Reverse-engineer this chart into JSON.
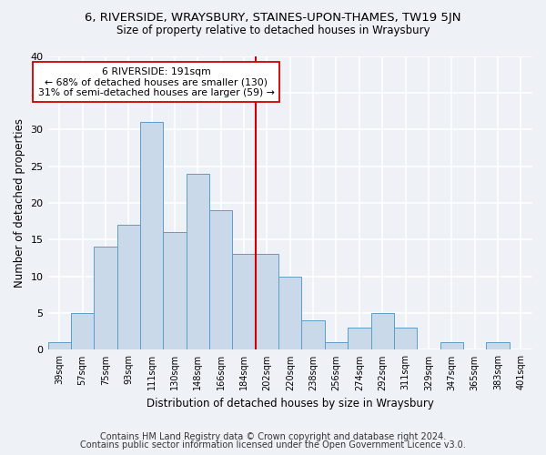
{
  "title": "6, RIVERSIDE, WRAYSBURY, STAINES-UPON-THAMES, TW19 5JN",
  "subtitle": "Size of property relative to detached houses in Wraysbury",
  "xlabel": "Distribution of detached houses by size in Wraysbury",
  "ylabel": "Number of detached properties",
  "bar_labels": [
    "39sqm",
    "57sqm",
    "75sqm",
    "93sqm",
    "111sqm",
    "130sqm",
    "148sqm",
    "166sqm",
    "184sqm",
    "202sqm",
    "220sqm",
    "238sqm",
    "256sqm",
    "274sqm",
    "292sqm",
    "311sqm",
    "329sqm",
    "347sqm",
    "365sqm",
    "383sqm",
    "401sqm"
  ],
  "bar_values": [
    1,
    5,
    14,
    17,
    31,
    16,
    24,
    19,
    13,
    13,
    10,
    4,
    1,
    3,
    5,
    3,
    0,
    1,
    0,
    1,
    0
  ],
  "bar_color": "#c9d9ea",
  "bar_edge_color": "#5a9ec8",
  "annotation_text": "6 RIVERSIDE: 191sqm\n← 68% of detached houses are smaller (130)\n31% of semi-detached houses are larger (59) →",
  "vline_x": 8.5,
  "vline_color": "#cc0000",
  "annotation_box_facecolor": "#ffffff",
  "annotation_box_edgecolor": "#cc0000",
  "ylim": [
    0,
    40
  ],
  "yticks": [
    0,
    5,
    10,
    15,
    20,
    25,
    30,
    35,
    40
  ],
  "bg_color": "#eef2f7",
  "grid_color": "#ffffff",
  "title_fontsize": 9.5,
  "subtitle_fontsize": 8.5,
  "tick_fontsize": 7,
  "ylabel_fontsize": 8.5,
  "xlabel_fontsize": 8.5,
  "annotation_fontsize": 7.8,
  "footer_fontsize": 7,
  "footer_line1": "Contains HM Land Registry data © Crown copyright and database right 2024.",
  "footer_line2": "Contains public sector information licensed under the Open Government Licence v3.0."
}
